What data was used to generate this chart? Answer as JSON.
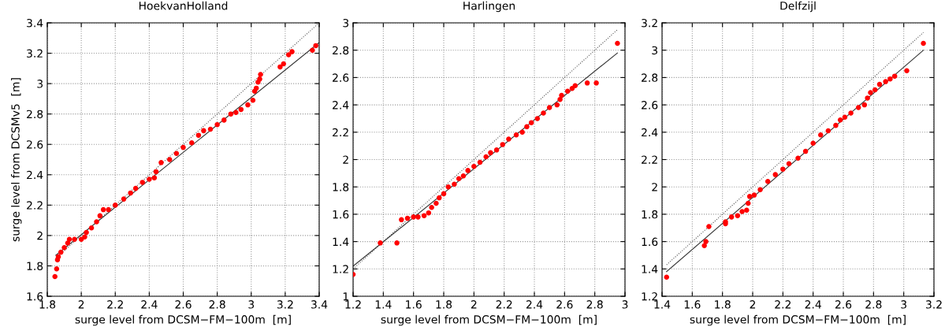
{
  "chart_data": [
    {
      "type": "scatter",
      "title": "HoekvanHolland",
      "xlabel": "surge level from DCSM−FM−100m  [m]",
      "ylabel": "surge level from DCSMv5  [m]",
      "xlim": [
        1.8,
        3.4
      ],
      "ylim": [
        1.6,
        3.4
      ],
      "xticks": [
        1.8,
        2,
        2.2,
        2.4,
        2.6,
        2.8,
        3,
        3.2,
        3.4
      ],
      "yticks": [
        1.6,
        1.8,
        2,
        2.2,
        2.4,
        2.6,
        2.8,
        3,
        3.2,
        3.4
      ],
      "grid": true,
      "series": [
        {
          "type": "line",
          "color": "#555555",
          "line_style": "dotted",
          "x": [
            1.85,
            3.4
          ],
          "values": [
            1.85,
            3.4
          ]
        },
        {
          "type": "line",
          "color": "#333333",
          "line_style": "solid",
          "x": [
            1.85,
            3.4
          ],
          "values": [
            1.87,
            3.27
          ]
        },
        {
          "marker": "circle",
          "color": "#ff0000",
          "x": [
            1.845,
            1.855,
            1.86,
            1.865,
            1.88,
            1.9,
            1.92,
            1.93,
            1.96,
            2.0,
            2.02,
            2.03,
            2.06,
            2.09,
            2.11,
            2.13,
            2.16,
            2.2,
            2.25,
            2.29,
            2.32,
            2.36,
            2.4,
            2.43,
            2.44,
            2.47,
            2.52,
            2.56,
            2.6,
            2.65,
            2.69,
            2.72,
            2.76,
            2.8,
            2.84,
            2.88,
            2.91,
            2.94,
            2.98,
            3.01,
            3.02,
            3.03,
            3.04,
            3.05,
            3.055,
            3.17,
            3.19,
            3.22,
            3.24,
            3.36,
            3.38
          ],
          "values": [
            1.73,
            1.78,
            1.84,
            1.86,
            1.89,
            1.92,
            1.95,
            1.975,
            1.975,
            1.975,
            1.99,
            2.02,
            2.05,
            2.09,
            2.13,
            2.17,
            2.17,
            2.2,
            2.24,
            2.28,
            2.31,
            2.35,
            2.37,
            2.38,
            2.42,
            2.48,
            2.5,
            2.54,
            2.58,
            2.61,
            2.66,
            2.69,
            2.7,
            2.73,
            2.76,
            2.8,
            2.81,
            2.83,
            2.86,
            2.89,
            2.95,
            2.97,
            3.01,
            3.03,
            3.06,
            3.11,
            3.13,
            3.19,
            3.21,
            3.22,
            3.25
          ]
        }
      ]
    },
    {
      "type": "scatter",
      "title": "Harlingen",
      "xlabel": "surge level from DCSM−FM−100m  [m]",
      "xlim": [
        1.2,
        3.0
      ],
      "ylim": [
        1,
        3
      ],
      "xticks": [
        1.2,
        1.4,
        1.6,
        1.8,
        2,
        2.2,
        2.4,
        2.6,
        2.8,
        3
      ],
      "yticks": [
        1,
        1.2,
        1.4,
        1.6,
        1.8,
        2,
        2.2,
        2.4,
        2.6,
        2.8,
        3
      ],
      "grid": true,
      "series": [
        {
          "type": "line",
          "color": "#555555",
          "line_style": "dotted",
          "x": [
            1.2,
            2.95
          ],
          "values": [
            1.2,
            2.95
          ]
        },
        {
          "type": "line",
          "color": "#333333",
          "line_style": "solid",
          "x": [
            1.2,
            2.95
          ],
          "values": [
            1.22,
            2.78
          ]
        },
        {
          "marker": "circle",
          "color": "#ff0000",
          "x": [
            1.2,
            1.38,
            1.49,
            1.52,
            1.56,
            1.6,
            1.63,
            1.67,
            1.7,
            1.72,
            1.75,
            1.77,
            1.8,
            1.83,
            1.87,
            1.9,
            1.93,
            1.96,
            2.0,
            2.04,
            2.08,
            2.11,
            2.15,
            2.19,
            2.23,
            2.28,
            2.32,
            2.35,
            2.38,
            2.42,
            2.46,
            2.5,
            2.55,
            2.57,
            2.58,
            2.62,
            2.65,
            2.67,
            2.75,
            2.81,
            2.95
          ],
          "values": [
            1.16,
            1.39,
            1.39,
            1.56,
            1.57,
            1.58,
            1.58,
            1.59,
            1.61,
            1.65,
            1.68,
            1.72,
            1.75,
            1.8,
            1.82,
            1.86,
            1.88,
            1.92,
            1.95,
            1.98,
            2.02,
            2.05,
            2.07,
            2.11,
            2.15,
            2.18,
            2.2,
            2.24,
            2.27,
            2.3,
            2.34,
            2.38,
            2.4,
            2.44,
            2.47,
            2.5,
            2.52,
            2.54,
            2.56,
            2.56,
            2.85
          ]
        }
      ]
    },
    {
      "type": "scatter",
      "title": "Delfzijl",
      "xlabel": "surge level from DCSM−FM−100m  [m]",
      "xlim": [
        1.4,
        3.2
      ],
      "ylim": [
        1.2,
        3.2
      ],
      "xticks": [
        1.4,
        1.6,
        1.8,
        2,
        2.2,
        2.4,
        2.6,
        2.8,
        3,
        3.2
      ],
      "yticks": [
        1.2,
        1.4,
        1.6,
        1.8,
        2,
        2.2,
        2.4,
        2.6,
        2.8,
        3,
        3.2
      ],
      "grid": true,
      "series": [
        {
          "type": "line",
          "color": "#555555",
          "line_style": "dotted",
          "x": [
            1.43,
            3.13
          ],
          "values": [
            1.43,
            3.13
          ]
        },
        {
          "type": "line",
          "color": "#333333",
          "line_style": "solid",
          "x": [
            1.43,
            3.13
          ],
          "values": [
            1.38,
            3.0
          ]
        },
        {
          "marker": "circle",
          "color": "#ff0000",
          "x": [
            1.43,
            1.68,
            1.69,
            1.71,
            1.82,
            1.82,
            1.86,
            1.9,
            1.93,
            1.96,
            1.97,
            1.98,
            2.01,
            2.05,
            2.1,
            2.15,
            2.2,
            2.24,
            2.3,
            2.35,
            2.4,
            2.45,
            2.5,
            2.55,
            2.58,
            2.61,
            2.65,
            2.7,
            2.74,
            2.76,
            2.78,
            2.81,
            2.84,
            2.88,
            2.91,
            2.94,
            3.02,
            3.13
          ],
          "values": [
            1.34,
            1.57,
            1.6,
            1.71,
            1.73,
            1.745,
            1.78,
            1.79,
            1.82,
            1.83,
            1.88,
            1.93,
            1.94,
            1.98,
            2.04,
            2.09,
            2.13,
            2.17,
            2.21,
            2.26,
            2.32,
            2.38,
            2.41,
            2.45,
            2.49,
            2.51,
            2.54,
            2.58,
            2.6,
            2.65,
            2.69,
            2.71,
            2.75,
            2.77,
            2.79,
            2.81,
            2.85,
            3.05
          ]
        }
      ]
    }
  ]
}
